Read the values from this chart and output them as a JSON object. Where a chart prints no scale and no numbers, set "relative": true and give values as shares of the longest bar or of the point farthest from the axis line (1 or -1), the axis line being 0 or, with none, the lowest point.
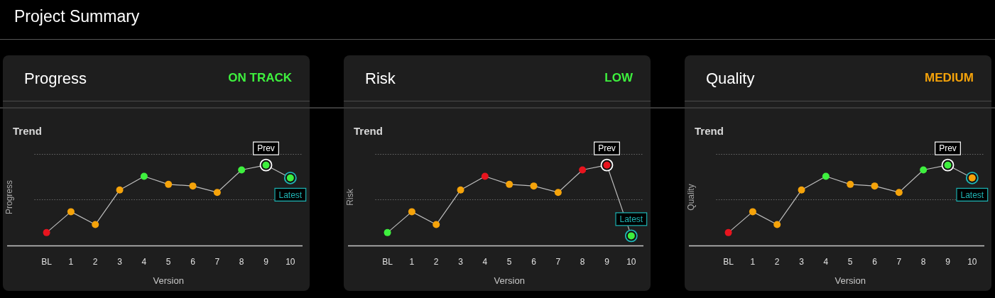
{
  "chart_data": [
    {
      "type": "line",
      "title": "Progress",
      "subtitle": "ON TRACK",
      "ylabel": "Progress",
      "xlabel": "Version",
      "relative": true,
      "marker": "circle",
      "categories": [
        "BL",
        "1",
        "2",
        "3",
        "4",
        "5",
        "6",
        "7",
        "8",
        "9",
        "10"
      ],
      "series": [
        {
          "color": "#bdbdbd",
          "values": [
            0.16,
            0.42,
            0.26,
            0.69,
            0.86,
            0.76,
            0.74,
            0.66,
            0.94,
            1,
            0.84
          ],
          "colors": [
            "#e8141e",
            "#f5a30a",
            "#f5a30a",
            "#f5a30a",
            "#3ef03e",
            "#f5a30a",
            "#f5a30a",
            "#f5a30a",
            "#3ef03e",
            "#3ef03e",
            "#3ef03e"
          ]
        }
      ],
      "ref_lines": [
        {
          "axis": "y",
          "value": 0.57,
          "color": "#6a6a6a",
          "line_style": "dotted"
        },
        {
          "axis": "y",
          "value": 1.14,
          "color": "#6a6a6a",
          "line_style": "dotted"
        }
      ],
      "annotations": [
        "Project Summary",
        "Trend",
        {
          "text": "Prev",
          "x": "9",
          "y": 1
        },
        {
          "text": "Latest",
          "x": "10",
          "y": 0.84
        }
      ]
    },
    {
      "type": "line",
      "title": "Risk",
      "subtitle": "LOW",
      "ylabel": "Risk",
      "xlabel": "Version",
      "relative": true,
      "marker": "circle",
      "categories": [
        "BL",
        "1",
        "2",
        "3",
        "4",
        "5",
        "6",
        "7",
        "8",
        "9",
        "10"
      ],
      "series": [
        {
          "color": "#bdbdbd",
          "values": [
            0.16,
            0.42,
            0.26,
            0.69,
            0.86,
            0.76,
            0.74,
            0.66,
            0.94,
            1,
            0.12
          ],
          "colors": [
            "#3ef03e",
            "#f5a30a",
            "#f5a30a",
            "#f5a30a",
            "#e8141e",
            "#f5a30a",
            "#f5a30a",
            "#f5a30a",
            "#e8141e",
            "#e8141e",
            "#3ef03e"
          ]
        }
      ],
      "ref_lines": [
        {
          "axis": "y",
          "value": 0.57,
          "color": "#6a6a6a",
          "line_style": "dotted"
        },
        {
          "axis": "y",
          "value": 1.14,
          "color": "#6a6a6a",
          "line_style": "dotted"
        }
      ],
      "annotations": [
        "Trend",
        {
          "text": "Prev",
          "x": "9",
          "y": 1
        },
        {
          "text": "Latest",
          "x": "10",
          "y": 0.12
        }
      ]
    },
    {
      "type": "line",
      "title": "Quality",
      "subtitle": "MEDIUM",
      "ylabel": "Quality",
      "xlabel": "Version",
      "relative": true,
      "marker": "circle",
      "categories": [
        "BL",
        "1",
        "2",
        "3",
        "4",
        "5",
        "6",
        "7",
        "8",
        "9",
        "10"
      ],
      "series": [
        {
          "color": "#bdbdbd",
          "values": [
            0.16,
            0.42,
            0.26,
            0.69,
            0.86,
            0.76,
            0.74,
            0.66,
            0.94,
            1,
            0.84
          ],
          "colors": [
            "#e8141e",
            "#f5a30a",
            "#f5a30a",
            "#f5a30a",
            "#3ef03e",
            "#f5a30a",
            "#f5a30a",
            "#f5a30a",
            "#3ef03e",
            "#3ef03e",
            "#f5a30a"
          ]
        }
      ],
      "ref_lines": [
        {
          "axis": "y",
          "value": 0.57,
          "color": "#6a6a6a",
          "line_style": "dotted"
        },
        {
          "axis": "y",
          "value": 1.14,
          "color": "#6a6a6a",
          "line_style": "dotted"
        }
      ],
      "annotations": [
        "Trend",
        {
          "text": "Prev",
          "x": "9",
          "y": 1
        },
        {
          "text": "Latest",
          "x": "10",
          "y": 0.84
        }
      ]
    }
  ]
}
